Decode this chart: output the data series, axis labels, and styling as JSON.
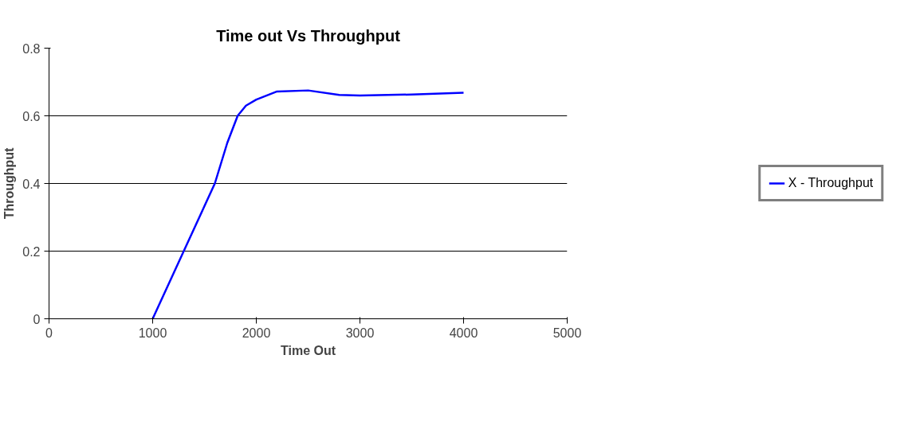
{
  "chart_data": {
    "type": "line",
    "title": "Time out Vs Throughput",
    "xlabel": "Time Out",
    "ylabel": "Throughput",
    "xlim": [
      0,
      5000
    ],
    "xticks": [
      0,
      1000,
      2000,
      3000,
      4000,
      5000
    ],
    "ylim": [
      0,
      0.8
    ],
    "yticks": [
      0,
      0.2,
      0.4,
      0.6,
      0.8
    ],
    "grid": "y",
    "legend": "right",
    "marker": "none",
    "line_style": "solid",
    "series": [
      {
        "name": "X - Throughput",
        "color": "#0000ff",
        "x": [
          1000,
          1300,
          1600,
          1720,
          1820,
          1900,
          2000,
          2200,
          2500,
          2800,
          3000,
          3500,
          4000
        ],
        "values": [
          0,
          0.2,
          0.4,
          0.52,
          0.6,
          0.63,
          0.648,
          0.672,
          0.675,
          0.662,
          0.66,
          0.663,
          0.668
        ]
      }
    ]
  }
}
